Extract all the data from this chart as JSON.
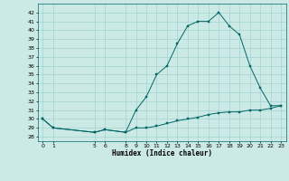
{
  "xlabel": "Humidex (Indice chaleur)",
  "background_color": "#cceae5",
  "grid_color": "#99cccc",
  "line_color": "#006666",
  "x_main": [
    0,
    1,
    5,
    6,
    8,
    9,
    10,
    11,
    12,
    13,
    14,
    15,
    16,
    17,
    18,
    19,
    20,
    21,
    22,
    23
  ],
  "y_main": [
    30,
    29,
    28.5,
    28.8,
    28.5,
    31.0,
    32.5,
    35.0,
    36.0,
    38.5,
    40.5,
    41.0,
    41.0,
    42.0,
    40.5,
    39.5,
    36.0,
    33.5,
    31.5,
    31.5
  ],
  "x_lower": [
    0,
    1,
    5,
    6,
    8,
    9,
    10,
    11,
    12,
    13,
    14,
    15,
    16,
    17,
    18,
    19,
    20,
    21,
    22,
    23
  ],
  "y_lower": [
    30,
    29,
    28.5,
    28.8,
    28.5,
    29.0,
    29.0,
    29.2,
    29.5,
    29.8,
    30.0,
    30.2,
    30.5,
    30.7,
    30.8,
    30.8,
    31.0,
    31.0,
    31.2,
    31.5
  ],
  "ylim": [
    27.5,
    43
  ],
  "xlim": [
    -0.5,
    23.5
  ],
  "yticks": [
    28,
    29,
    30,
    31,
    32,
    33,
    34,
    35,
    36,
    37,
    38,
    39,
    40,
    41,
    42
  ],
  "xticks": [
    0,
    1,
    5,
    6,
    8,
    9,
    10,
    11,
    12,
    13,
    14,
    15,
    16,
    17,
    18,
    19,
    20,
    21,
    22,
    23
  ]
}
